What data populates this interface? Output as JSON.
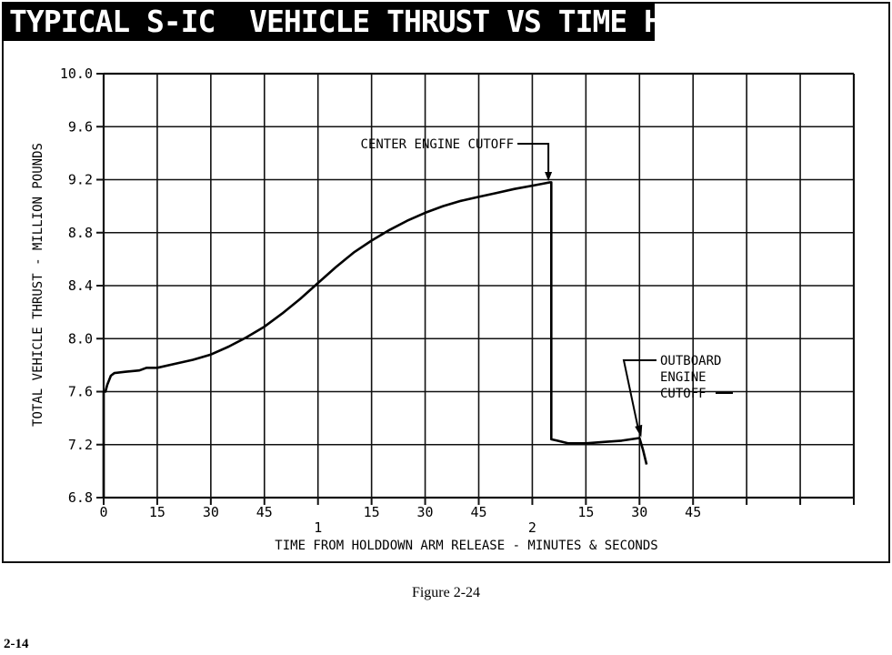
{
  "header": {
    "title": "TYPICAL S-IC  VEHICLE THRUST VS TIME HISTORY"
  },
  "figure_caption": "Figure 2-24",
  "page_number": "2-14",
  "chart_data": {
    "type": "line",
    "title": "TYPICAL S-IC  VEHICLE THRUST VS TIME HISTORY",
    "xlabel": "TIME FROM HOLDDOWN ARM RELEASE - MINUTES & SECONDS",
    "ylabel": "TOTAL VEHICLE THRUST - MILLION POUNDS",
    "xlim": [
      0,
      210
    ],
    "ylim": [
      6.8,
      10.0
    ],
    "grid": true,
    "y_ticks": [
      {
        "value": 6.8,
        "label": "6.8"
      },
      {
        "value": 7.2,
        "label": "7.2"
      },
      {
        "value": 7.6,
        "label": "7.6"
      },
      {
        "value": 8.0,
        "label": "8.0"
      },
      {
        "value": 8.4,
        "label": "8.4"
      },
      {
        "value": 8.8,
        "label": "8.8"
      },
      {
        "value": 9.2,
        "label": "9.2"
      },
      {
        "value": 9.6,
        "label": "9.6"
      },
      {
        "value": 10.0,
        "label": "10.0"
      }
    ],
    "x_ticks": [
      {
        "value": 0,
        "label": "0"
      },
      {
        "value": 15,
        "label": "15"
      },
      {
        "value": 30,
        "label": "30"
      },
      {
        "value": 45,
        "label": "45"
      },
      {
        "value": 60,
        "label": "",
        "minute": "1"
      },
      {
        "value": 75,
        "label": "15"
      },
      {
        "value": 90,
        "label": "30"
      },
      {
        "value": 105,
        "label": "45"
      },
      {
        "value": 120,
        "label": "",
        "minute": "2"
      },
      {
        "value": 135,
        "label": "15"
      },
      {
        "value": 150,
        "label": "30"
      },
      {
        "value": 165,
        "label": "45"
      },
      {
        "value": 180,
        "label": ""
      },
      {
        "value": 195,
        "label": ""
      },
      {
        "value": 210,
        "label": ""
      }
    ],
    "series": [
      {
        "points": [
          [
            0,
            6.8
          ],
          [
            0,
            7.6
          ],
          [
            0.5,
            7.6
          ],
          [
            1,
            7.65
          ],
          [
            2,
            7.72
          ],
          [
            3,
            7.74
          ],
          [
            6,
            7.75
          ],
          [
            10,
            7.76
          ],
          [
            12,
            7.78
          ],
          [
            15,
            7.78
          ],
          [
            20,
            7.81
          ],
          [
            25,
            7.84
          ],
          [
            30,
            7.88
          ],
          [
            35,
            7.94
          ],
          [
            40,
            8.01
          ],
          [
            45,
            8.09
          ],
          [
            50,
            8.19
          ],
          [
            55,
            8.3
          ],
          [
            60,
            8.42
          ],
          [
            65,
            8.54
          ],
          [
            70,
            8.65
          ],
          [
            75,
            8.74
          ],
          [
            80,
            8.82
          ],
          [
            85,
            8.89
          ],
          [
            90,
            8.95
          ],
          [
            95,
            9.0
          ],
          [
            100,
            9.04
          ],
          [
            105,
            9.07
          ],
          [
            110,
            9.1
          ],
          [
            115,
            9.13
          ],
          [
            120,
            9.155
          ],
          [
            125,
            9.18
          ],
          [
            125.3,
            9.18
          ],
          [
            125.3,
            7.24
          ],
          [
            127,
            7.23
          ],
          [
            130,
            7.21
          ],
          [
            135,
            7.21
          ],
          [
            140,
            7.22
          ],
          [
            145,
            7.23
          ],
          [
            150,
            7.25
          ],
          [
            151,
            7.16
          ],
          [
            152,
            7.05
          ]
        ]
      }
    ],
    "annotations": [
      {
        "id": "center",
        "lines": [
          "CENTER ENGINE CUTOFF"
        ],
        "target": [
          124.5,
          9.19
        ]
      },
      {
        "id": "outboard",
        "lines": [
          "OUTBOARD",
          "ENGINE",
          "CUTOFF"
        ],
        "target": [
          150.5,
          7.24
        ]
      }
    ]
  }
}
